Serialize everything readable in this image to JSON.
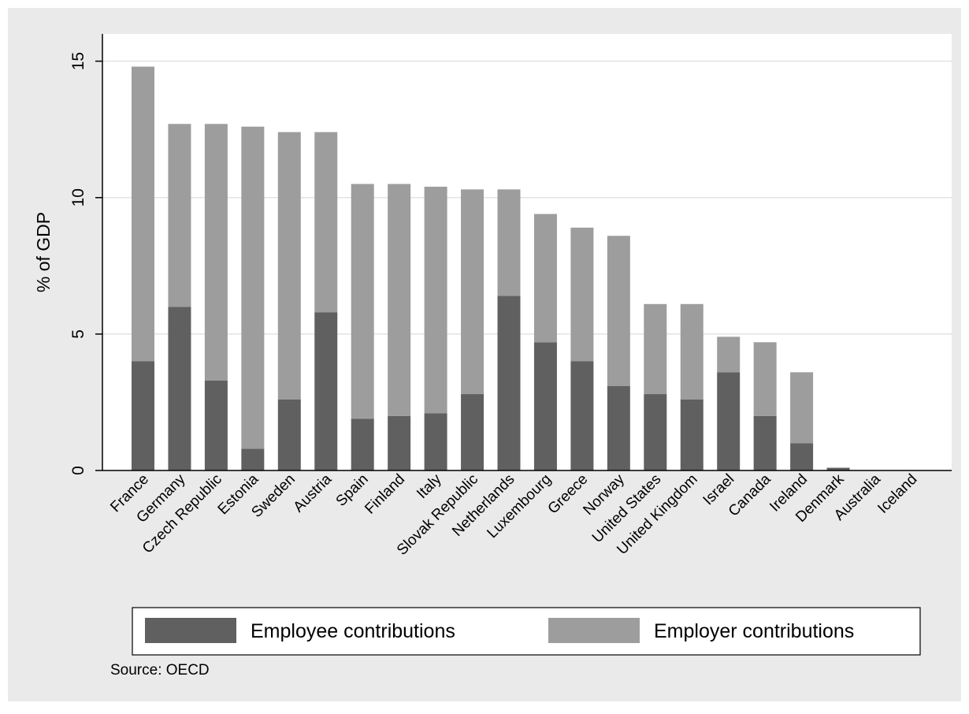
{
  "chart_data": {
    "type": "bar",
    "stacked": true,
    "ylabel": "% of GDP",
    "xlabel": "",
    "ylim": [
      0,
      16
    ],
    "yticks": [
      0,
      5,
      10,
      15
    ],
    "grid": true,
    "legend_position": "bottom",
    "source": "Source: OECD",
    "categories": [
      "France",
      "Germany",
      "Czech Republic",
      "Estonia",
      "Sweden",
      "Austria",
      "Spain",
      "Finland",
      "Italy",
      "Slovak Republic",
      "Netherlands",
      "Luxembourg",
      "Greece",
      "Norway",
      "United States",
      "United Kingdom",
      "Israel",
      "Canada",
      "Ireland",
      "Denmark",
      "Australia",
      "Iceland"
    ],
    "series": [
      {
        "name": "Employee contributions",
        "color": "#606060",
        "values": [
          4.0,
          6.0,
          3.3,
          0.8,
          2.6,
          5.8,
          1.9,
          2.0,
          2.1,
          2.8,
          6.4,
          4.7,
          4.0,
          3.1,
          2.8,
          2.6,
          3.6,
          2.0,
          1.0,
          0.1,
          0.0,
          0.0
        ]
      },
      {
        "name": "Employer contributions",
        "color": "#9d9d9d",
        "values": [
          10.8,
          6.7,
          9.4,
          11.8,
          9.8,
          6.6,
          8.6,
          8.5,
          8.3,
          7.5,
          3.9,
          4.7,
          4.9,
          5.5,
          3.3,
          3.5,
          1.3,
          2.7,
          2.6,
          0.0,
          0.0,
          0.0
        ]
      }
    ]
  },
  "colors": {
    "outer_background": "#eaeaea",
    "plot_background": "#ffffff",
    "gridline": "#e3e3e3"
  }
}
